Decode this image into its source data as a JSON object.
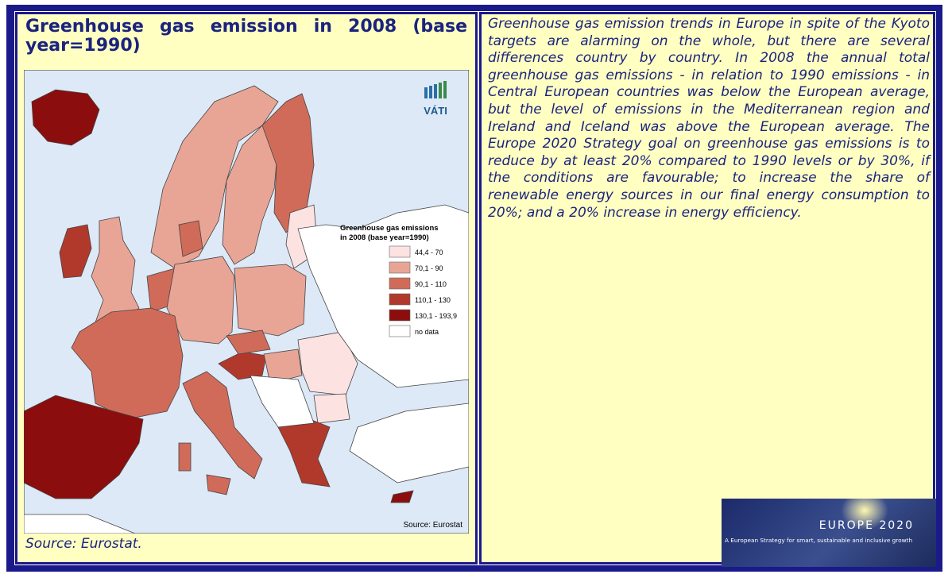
{
  "left": {
    "title": "Greenhouse gas emission in 2008 (base year=1990)",
    "map": {
      "logo": "VÁTI",
      "legend": {
        "title_lines": [
          "Greenhouse gas emissions",
          "in 2008 (base year=1990)"
        ],
        "items": [
          {
            "label": "44,4 - 70",
            "color": "#fde2e2"
          },
          {
            "label": "70,1 - 90",
            "color": "#e8a596"
          },
          {
            "label": "90,1 - 110",
            "color": "#d06b5a"
          },
          {
            "label": "110,1 - 130",
            "color": "#b1392c"
          },
          {
            "label": "130,1 - 193,9",
            "color": "#8c0d0d"
          },
          {
            "label": "no data",
            "color": "#ffffff"
          }
        ]
      },
      "source": "Source: Eurostat"
    },
    "caption": "Source: Eurostat."
  },
  "right": {
    "text": "Greenhouse gas emission trends in Europe in spite of the Kyoto targets are alarming on the whole, but there are several differences country by country. In 2008 the annual total greenhouse gas emissions - in relation to 1990 emissions - in Central European countries was below the European average, but the level of emissions in the Mediterranean region and Ireland and Iceland was above the European average. The Europe 2020 Strategy goal on greenhouse gas emissions is to reduce by at least 20% compared to 1990 levels or by 30%, if the conditions are favourable; to increase the share of renewable energy sources in our final energy consumption to 20%; and a 20% increase in energy efficiency.",
    "banner": {
      "title": "EUROPE 2020",
      "subtitle": "A European Strategy for smart, sustainable and inclusive growth"
    }
  }
}
